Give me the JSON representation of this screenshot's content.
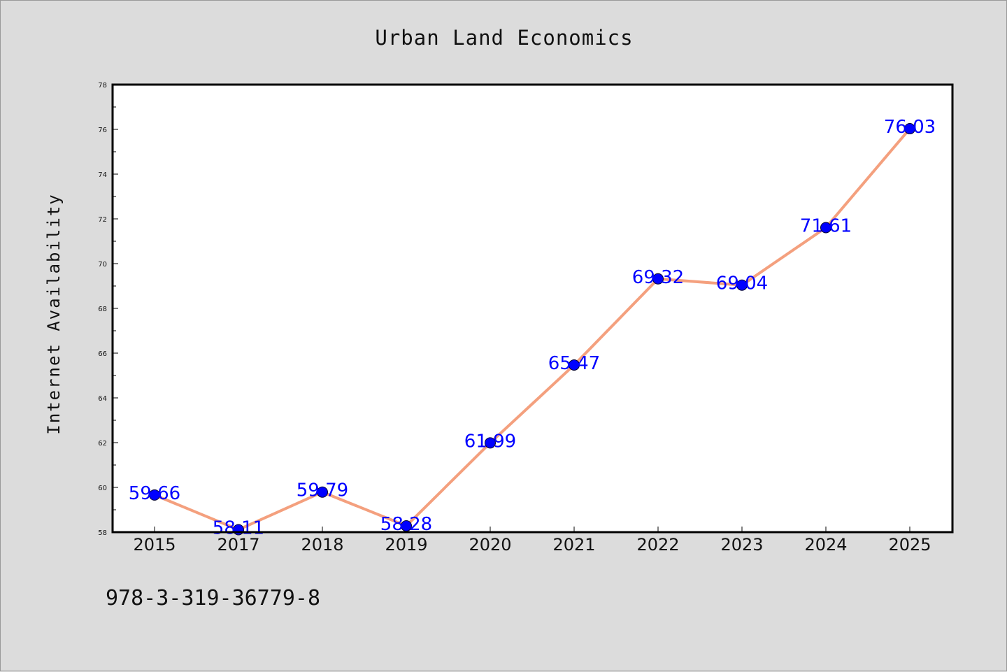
{
  "chart_data": {
    "type": "line",
    "title": "Urban Land Economics",
    "ylabel": "Internet Availability",
    "xlabel": "",
    "categories": [
      "2015",
      "2017",
      "2018",
      "2019",
      "2020",
      "2021",
      "2022",
      "2023",
      "2024",
      "2025"
    ],
    "values": [
      59.66,
      58.11,
      59.79,
      58.28,
      61.99,
      65.47,
      69.32,
      69.04,
      71.61,
      76.03
    ],
    "data_labels": [
      "59.66",
      "58.11",
      "59.79",
      "58.28",
      "61.99",
      "65.47",
      "69.32",
      "69.04",
      "71.61",
      "76.03"
    ],
    "ylim": [
      58,
      78
    ],
    "yticks": [
      "58",
      "60",
      "62",
      "64",
      "66",
      "68",
      "70",
      "72",
      "74",
      "76",
      "78"
    ],
    "grid": false,
    "line_color": "#f4a07e",
    "marker_color": "#0000ff",
    "label_color": "#0000ff"
  },
  "footer": {
    "isbn": "978-3-319-36779-8"
  }
}
